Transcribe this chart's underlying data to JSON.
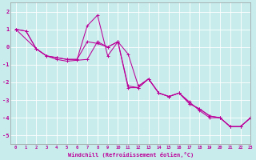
{
  "xlabel": "Windchill (Refroidissement éolien,°C)",
  "xlim": [
    -0.5,
    23
  ],
  "ylim": [
    -5.5,
    2.5
  ],
  "yticks": [
    2,
    1,
    0,
    -1,
    -2,
    -3,
    -4,
    -5
  ],
  "xticks": [
    0,
    1,
    2,
    3,
    4,
    5,
    6,
    7,
    8,
    9,
    10,
    11,
    12,
    13,
    14,
    15,
    16,
    17,
    18,
    19,
    20,
    21,
    22,
    23
  ],
  "bg_color": "#c8ecec",
  "grid_color": "#ffffff",
  "line_color": "#bb0099",
  "line1_x": [
    0,
    1,
    2,
    3,
    4,
    5,
    6,
    7,
    8,
    9,
    10,
    11,
    12,
    13,
    14,
    15,
    16,
    17,
    18,
    19,
    20,
    21,
    22,
    23
  ],
  "line1_y": [
    1.0,
    0.9,
    -0.1,
    -0.5,
    -0.6,
    -0.7,
    -0.7,
    0.3,
    0.2,
    0.0,
    0.3,
    -0.4,
    -2.2,
    -1.8,
    -2.6,
    -2.8,
    -2.6,
    -3.2,
    -3.5,
    -3.9,
    -4.0,
    -4.5,
    -4.5,
    -4.0
  ],
  "line2_x": [
    0,
    1,
    2,
    3,
    4,
    5,
    6,
    7,
    8,
    9,
    10,
    11,
    12,
    13,
    14,
    15,
    16,
    17,
    18,
    19,
    20,
    21,
    22,
    23
  ],
  "line2_y": [
    1.0,
    0.9,
    -0.1,
    -0.5,
    -0.6,
    -0.7,
    -0.7,
    1.2,
    1.8,
    -0.5,
    0.3,
    -2.2,
    -2.3,
    -1.8,
    -2.6,
    -2.8,
    -2.6,
    -3.1,
    -3.6,
    -4.0,
    -4.0,
    -4.5,
    -4.5,
    -4.0
  ],
  "line3_x": [
    0,
    2,
    3,
    4,
    5,
    6,
    7,
    8,
    9,
    10,
    11,
    12,
    13,
    14,
    15,
    16,
    17,
    18,
    19,
    20,
    21,
    22,
    23
  ],
  "line3_y": [
    1.0,
    -0.1,
    -0.5,
    -0.7,
    -0.8,
    -0.75,
    -0.7,
    0.3,
    0.0,
    0.3,
    -2.3,
    -2.3,
    -1.8,
    -2.6,
    -2.8,
    -2.6,
    -3.2,
    -3.5,
    -3.9,
    -4.0,
    -4.5,
    -4.5,
    -4.0
  ]
}
